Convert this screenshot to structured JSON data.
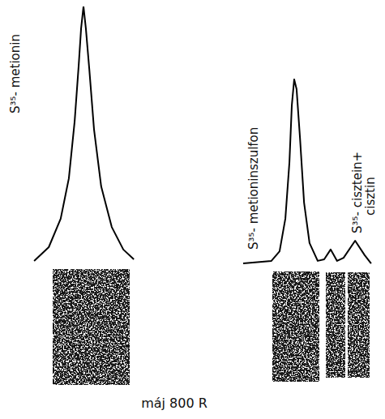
{
  "chart_data": {
    "type": "line",
    "title": "máj 800 R",
    "annotations": [
      "S³⁵- metionin",
      "S³⁵- metioninszulfon",
      "S³⁵- cisztein+ cisztin"
    ],
    "x": [
      0.5,
      4.8,
      8.3,
      10.7,
      12.4,
      13.6,
      14.3,
      15.0,
      15.7,
      16.7,
      18.1,
      20.2,
      23.3,
      26.7,
      29.8,
      45.0,
      61.9,
      70.2,
      72.6,
      74.3,
      75.5,
      76.2,
      76.9,
      77.6,
      78.6,
      79.8,
      81.4,
      83.8,
      85.7,
      87.6,
      89.5,
      91.4,
      94.8,
      97.6,
      99.5
    ],
    "values": [
      1.6,
      6.9,
      17.9,
      33.5,
      55.5,
      77.4,
      91.5,
      100,
      91.5,
      75.9,
      52.4,
      30.4,
      14.7,
      6.0,
      2.2,
      null,
      0.6,
      1.6,
      5.3,
      17.9,
      39.8,
      61.8,
      71.8,
      68.0,
      49.2,
      24.1,
      8.5,
      1.6,
      2.2,
      6.0,
      1.6,
      2.8,
      9.4,
      3.8,
      0.6
    ],
    "color": "#000000",
    "xlim": [
      0,
      100
    ],
    "ylim": [
      0,
      100
    ],
    "tick_labels": false,
    "grid": false
  }
}
